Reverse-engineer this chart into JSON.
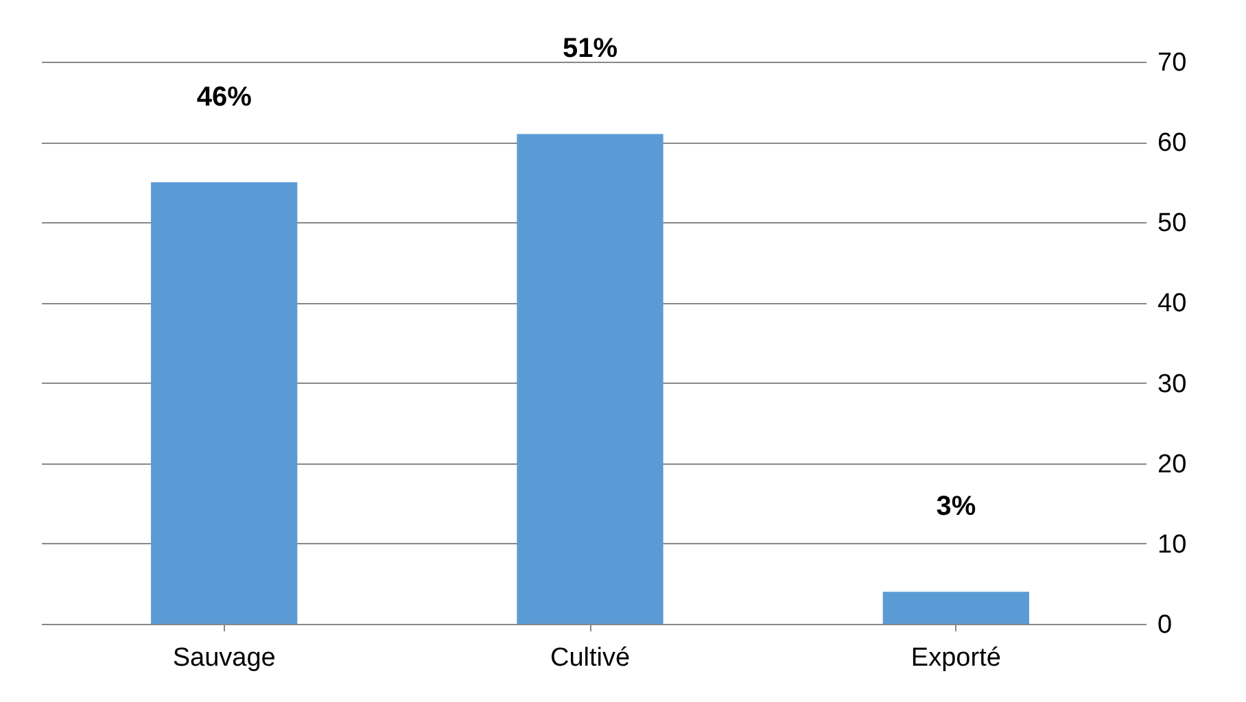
{
  "chart_data": {
    "type": "bar",
    "categories": [
      "Sauvage",
      "Cultivé",
      "Exporté"
    ],
    "values": [
      55,
      61,
      4
    ],
    "annotations": [
      "46%",
      "51%",
      "3%"
    ],
    "color": "#5b9bd5",
    "ylim": [
      0,
      70
    ],
    "yticks": [
      0,
      10,
      20,
      30,
      40,
      50,
      60,
      70
    ],
    "grid": "y"
  }
}
